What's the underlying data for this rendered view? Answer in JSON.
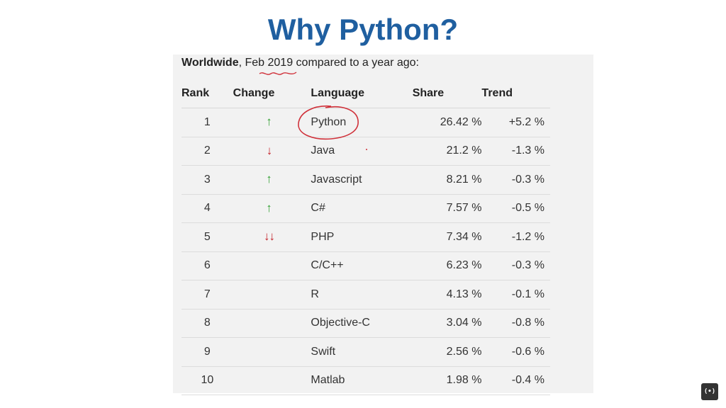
{
  "slide": {
    "title": "Why Python?"
  },
  "subtitle": {
    "bold": "Worldwide",
    "rest": ", Feb 2019 compared to a year ago:"
  },
  "table": {
    "headers": {
      "rank": "Rank",
      "change": "Change",
      "language": "Language",
      "share": "Share",
      "trend": "Trend"
    },
    "rows": [
      {
        "rank": "1",
        "change": "up",
        "language": "Python",
        "share": "26.42 %",
        "trend": "+5.2 %"
      },
      {
        "rank": "2",
        "change": "down",
        "language": "Java",
        "share": "21.2 %",
        "trend": "-1.3 %"
      },
      {
        "rank": "3",
        "change": "up",
        "language": "Javascript",
        "share": "8.21 %",
        "trend": "-0.3 %"
      },
      {
        "rank": "4",
        "change": "up",
        "language": "C#",
        "share": "7.57 %",
        "trend": "-0.5 %"
      },
      {
        "rank": "5",
        "change": "down-down",
        "language": "PHP",
        "share": "7.34 %",
        "trend": "-1.2 %"
      },
      {
        "rank": "6",
        "change": "",
        "language": "C/C++",
        "share": "6.23 %",
        "trend": "-0.3 %"
      },
      {
        "rank": "7",
        "change": "",
        "language": "R",
        "share": "4.13 %",
        "trend": "-0.1 %"
      },
      {
        "rank": "8",
        "change": "",
        "language": "Objective-C",
        "share": "3.04 %",
        "trend": "-0.8 %"
      },
      {
        "rank": "9",
        "change": "",
        "language": "Swift",
        "share": "2.56 %",
        "trend": "-0.6 %"
      },
      {
        "rank": "10",
        "change": "",
        "language": "Matlab",
        "share": "1.98 %",
        "trend": "-0.4 %"
      }
    ]
  },
  "colors": {
    "title": "#1f5fa0",
    "up": "#2f9e2f",
    "down": "#c4242b",
    "annotation": "#d0313a"
  },
  "icons": {
    "up": "arrow-up-icon",
    "down": "arrow-down-icon",
    "logo": "channel-logo-icon"
  }
}
